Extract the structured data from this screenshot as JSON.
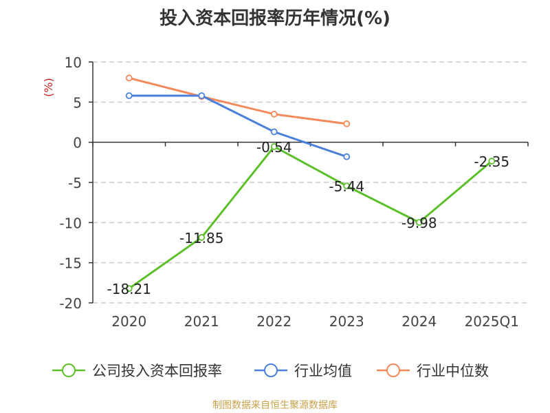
{
  "title": "投入资本回报率历年情况(%)",
  "source": "制图数据来自恒生聚源数据库",
  "chart_data": {
    "type": "line",
    "categories": [
      "2020",
      "2021",
      "2022",
      "2023",
      "2024",
      "2025Q1"
    ],
    "ylabel": "(%)",
    "ylim": [
      -20,
      10
    ],
    "yticks": [
      10,
      5,
      0,
      -5,
      -10,
      -15,
      -20
    ],
    "grid": true,
    "legend_position": "bottom",
    "series": [
      {
        "name": "公司投入资本回报率",
        "color": "#5cbf2a",
        "values": [
          -18.21,
          -11.85,
          -0.54,
          -5.44,
          -9.98,
          -2.35
        ],
        "labels": [
          "-18.21",
          "-11.85",
          "-0.54",
          "-5.44",
          "-9.98",
          "-2.35"
        ]
      },
      {
        "name": "行业均值",
        "color": "#4a7fdb",
        "values": [
          5.8,
          5.8,
          1.3,
          -1.8,
          null,
          null
        ]
      },
      {
        "name": "行业中位数",
        "color": "#f5895a",
        "values": [
          8.0,
          5.7,
          3.5,
          2.3,
          null,
          null
        ]
      }
    ]
  }
}
